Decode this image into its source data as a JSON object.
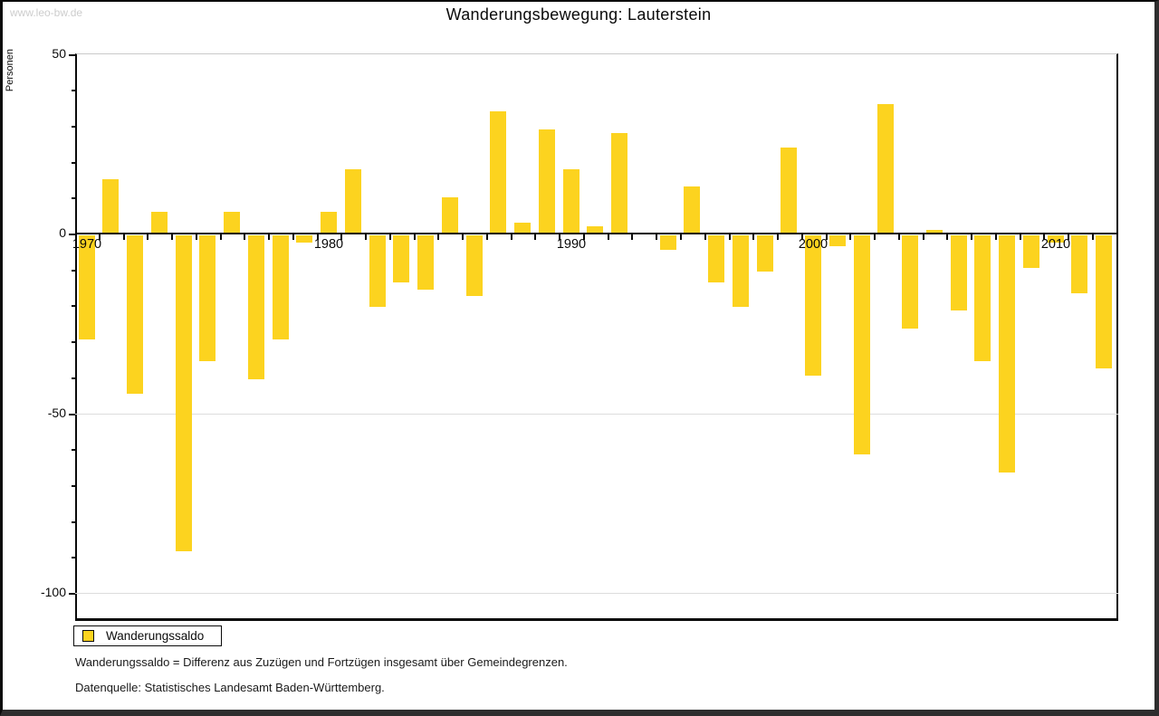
{
  "window": {
    "watermark": "www.leo-bw.de",
    "title": "Wanderungsbewegung: Lauterstein"
  },
  "legend": {
    "label": "Wanderungssaldo"
  },
  "footnotes": [
    "Wanderungssaldo = Differenz aus Zuzügen und Fortzügen insgesamt über Gemeindegrenzen.",
    "Datenquelle: Statistisches Landesamt Baden-Württemberg."
  ],
  "chart_data": {
    "type": "bar",
    "title": "Wanderungsbewegung: Lauterstein",
    "xlabel": "",
    "ylabel": "Personen",
    "series_name": "Wanderungssaldo",
    "x": [
      1970,
      1971,
      1972,
      1973,
      1974,
      1975,
      1976,
      1977,
      1978,
      1979,
      1980,
      1981,
      1982,
      1983,
      1984,
      1985,
      1986,
      1987,
      1988,
      1989,
      1990,
      1991,
      1992,
      1993,
      1994,
      1995,
      1996,
      1997,
      1998,
      1999,
      2000,
      2001,
      2002,
      2003,
      2004,
      2005,
      2006,
      2007,
      2008,
      2009,
      2010,
      2011,
      2012
    ],
    "values": [
      -29,
      15,
      -44,
      6,
      -88,
      -35,
      6,
      -40,
      -29,
      -2,
      6,
      18,
      -20,
      -13,
      -15,
      10,
      -17,
      34,
      3,
      29,
      18,
      2,
      28,
      0,
      -4,
      13,
      -13,
      -20,
      -10,
      24,
      -39,
      -3,
      -61,
      36,
      -26,
      1,
      -21,
      -35,
      -66,
      -9,
      -2,
      -16,
      -37
    ],
    "yticks": [
      50,
      0,
      -50,
      -100
    ],
    "ytick_minor_step": 10,
    "xticks": [
      1970,
      1980,
      1990,
      2000,
      2010
    ],
    "ylim": [
      -108,
      50
    ],
    "grid": "horizontal-at--50-and--100",
    "legend_position": "bottom-left",
    "bar_color": "#FCD31F",
    "axis_color": "#0a0a0a",
    "gridline_color": "#dddddd"
  }
}
